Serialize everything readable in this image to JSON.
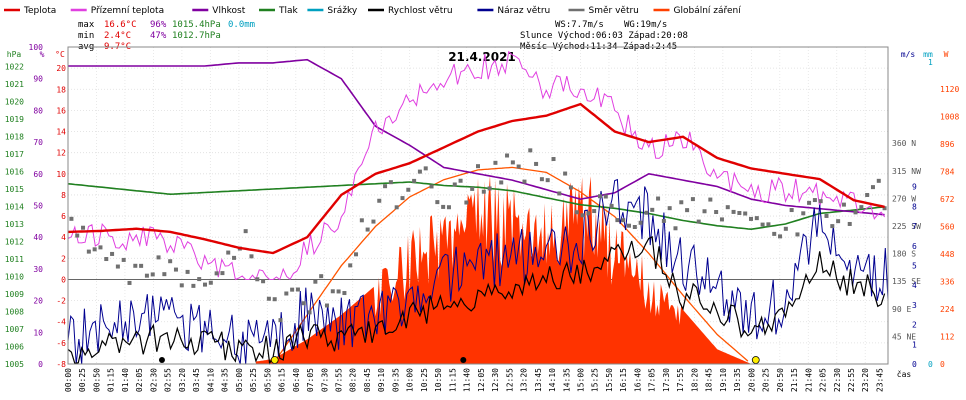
{
  "chart_data": {
    "type": "line",
    "title": "21.4.2021",
    "legend": [
      {
        "name": "Teplota",
        "color": "#e00000"
      },
      {
        "name": "Přízemní teplota",
        "color": "#e040e0"
      },
      {
        "name": "Vlhkost",
        "color": "#8000a0"
      },
      {
        "name": "Tlak",
        "color": "#208020"
      },
      {
        "name": "Srážky",
        "color": "#00a0c0"
      },
      {
        "name": "Rychlost větru",
        "color": "#000000"
      },
      {
        "name": "Náraz větru",
        "color": "#000090"
      },
      {
        "name": "Směr větru",
        "color": "#707070"
      },
      {
        "name": "Globální záření",
        "color": "#ff4000"
      }
    ],
    "stats": {
      "max": {
        "label": "max",
        "temp": "16.6°C",
        "hum": "96%",
        "press": "1015.4hPa",
        "rain": "0.0mm"
      },
      "min": {
        "label": "min",
        "temp": "2.4°C",
        "hum": "47%",
        "press": "1012.7hPa"
      },
      "avg": {
        "label": "avg",
        "temp": "9.7°C"
      }
    },
    "info": {
      "ws": "WS:7.7m/s",
      "wg": "WG:19m/s",
      "sun": "Slunce Východ:06:03  Západ:20:08",
      "moon": "Měsíc  Východ:11:34  Západ:2:45"
    },
    "axes": {
      "hpa_unit": "hPa",
      "pct_unit": "%",
      "c_unit": "°C",
      "ms_unit": "m/s",
      "mm_unit": "mm",
      "w_unit": "W",
      "hpa_ticks": [
        "1005",
        "1006",
        "1007",
        "1008",
        "1009",
        "1010",
        "1011",
        "1012",
        "1013",
        "1014",
        "1015",
        "1016",
        "1017",
        "1018",
        "1019",
        "1020",
        "1021",
        "1022"
      ],
      "pct_ticks": [
        "0",
        "10",
        "20",
        "30",
        "40",
        "50",
        "60",
        "70",
        "80",
        "90",
        "100"
      ],
      "c_ticks": [
        "-8",
        "-6",
        "-4",
        "-2",
        "0",
        "2",
        "4",
        "6",
        "8",
        "10",
        "12",
        "14",
        "16",
        "18",
        "20"
      ],
      "dir_ticks": [
        "45 NE",
        "90 E",
        "135 SE",
        "180 S",
        "225 SW",
        "270 W",
        "315 NW",
        "360 N"
      ],
      "ms_ticks": [
        "0",
        "1",
        "2",
        "3",
        "4",
        "5",
        "6",
        "7",
        "8",
        "9"
      ],
      "mm_ticks": [
        "0",
        "1"
      ],
      "w_ticks": [
        "0",
        "112",
        "224",
        "336",
        "448",
        "560",
        "672",
        "784",
        "896",
        "1008",
        "1120"
      ],
      "x_unit": "čas",
      "x_ticks": [
        "00:00",
        "00:25",
        "00:50",
        "01:15",
        "01:40",
        "02:05",
        "02:30",
        "02:55",
        "03:20",
        "03:45",
        "04:10",
        "04:35",
        "05:00",
        "05:25",
        "05:50",
        "06:15",
        "06:40",
        "07:05",
        "07:30",
        "07:55",
        "08:20",
        "08:45",
        "09:10",
        "09:35",
        "10:00",
        "10:25",
        "10:50",
        "11:15",
        "11:40",
        "12:05",
        "12:30",
        "12:55",
        "13:20",
        "13:45",
        "14:10",
        "14:35",
        "15:00",
        "15:25",
        "15:50",
        "16:15",
        "16:40",
        "17:05",
        "17:30",
        "17:55",
        "18:20",
        "18:45",
        "19:10",
        "19:35",
        "20:00",
        "20:25",
        "20:50",
        "21:15",
        "21:40",
        "22:05",
        "22:30",
        "22:55",
        "23:20",
        "23:45"
      ]
    },
    "temperature_c": {
      "x_hours": [
        0,
        1,
        2,
        3,
        4,
        5,
        6,
        7,
        8,
        9,
        10,
        11,
        12,
        13,
        14,
        15,
        16,
        17,
        18,
        19,
        20,
        21,
        22,
        23,
        24
      ],
      "values": [
        4.5,
        4.6,
        4.8,
        4.5,
        3.8,
        3.0,
        2.5,
        4.0,
        8.0,
        10.0,
        11.0,
        12.5,
        14.0,
        15.0,
        15.5,
        16.6,
        14.0,
        13.0,
        13.5,
        11.5,
        10.5,
        10.0,
        9.5,
        7.5,
        6.8
      ]
    },
    "ground_temp_c": {
      "x_hours": [
        0,
        1,
        2,
        3,
        4,
        5,
        6,
        7,
        8,
        9,
        10,
        11,
        12,
        13,
        14,
        15,
        16,
        17,
        18,
        19,
        20,
        21,
        22,
        23,
        24
      ],
      "values": [
        4.0,
        4.0,
        4.0,
        3.5,
        2.0,
        0,
        -0.5,
        3.0,
        6.0,
        14.0,
        17.0,
        19.0,
        20.0,
        20.5,
        18.0,
        18.5,
        16.0,
        12.0,
        13.5,
        10.0,
        8.0,
        8.5,
        8.0,
        7.0,
        6.0
      ]
    },
    "humidity_pct": {
      "x_hours": [
        0,
        1,
        2,
        3,
        4,
        5,
        6,
        7,
        8,
        9,
        10,
        11,
        12,
        13,
        14,
        15,
        16,
        17,
        18,
        19,
        20,
        21,
        22,
        23,
        24
      ],
      "values": [
        94,
        94,
        94,
        94,
        94,
        95,
        95,
        96,
        90,
        75,
        69,
        62,
        60,
        58,
        55,
        52,
        54,
        60,
        58,
        56,
        52,
        50,
        49,
        48,
        47
      ]
    },
    "pressure_hpa": {
      "x_hours": [
        0,
        1,
        2,
        3,
        4,
        5,
        6,
        7,
        8,
        9,
        10,
        11,
        12,
        13,
        14,
        15,
        16,
        17,
        18,
        19,
        20,
        21,
        22,
        23,
        24
      ],
      "values": [
        1015.3,
        1015.1,
        1014.9,
        1014.7,
        1014.8,
        1014.9,
        1015.0,
        1015.1,
        1015.2,
        1015.3,
        1015.4,
        1015.2,
        1015.1,
        1014.9,
        1014.5,
        1014.1,
        1013.9,
        1013.6,
        1013.2,
        1012.9,
        1012.7,
        1013.0,
        1013.6,
        1013.8,
        1014.0
      ]
    },
    "wind_speed_ms": {
      "x_hours": [
        0,
        1,
        2,
        3,
        4,
        5,
        6,
        7,
        8,
        9,
        10,
        11,
        12,
        13,
        14,
        15,
        16,
        17,
        18,
        19,
        20,
        21,
        22,
        23,
        24
      ],
      "values": [
        0.5,
        1.0,
        1.2,
        1.3,
        1.0,
        0.8,
        0.7,
        1.5,
        1.3,
        1.5,
        2.5,
        3.0,
        3.5,
        4.0,
        4.3,
        4.5,
        5.5,
        6.0,
        3.5,
        3.0,
        1.5,
        2.5,
        5.0,
        4.0,
        3.5
      ]
    },
    "wind_gust_ms": {
      "x_hours": [
        0,
        1,
        2,
        3,
        4,
        5,
        6,
        7,
        8,
        9,
        10,
        11,
        12,
        13,
        14,
        15,
        16,
        17,
        18,
        19,
        20,
        21,
        22,
        23,
        24
      ],
      "values": [
        1.0,
        1.8,
        2.5,
        2.0,
        1.5,
        1.0,
        1.2,
        2.5,
        2.2,
        2.5,
        3.5,
        4.5,
        5.0,
        5.5,
        5.5,
        6.0,
        8.5,
        7.5,
        5.0,
        4.0,
        2.5,
        3.0,
        7.5,
        5.0,
        4.5
      ]
    },
    "wind_dir_deg": {
      "x_hours": [
        0,
        1,
        2,
        3,
        4,
        5,
        6,
        7,
        8,
        9,
        10,
        11,
        12,
        13,
        14,
        15,
        16,
        17,
        18,
        19,
        20,
        21,
        22,
        23,
        24
      ],
      "values": [
        250,
        165,
        155,
        140,
        125,
        215,
        85,
        110,
        130,
        260,
        300,
        280,
        300,
        320,
        330,
        250,
        260,
        245,
        240,
        255,
        230,
        235,
        250,
        255,
        280
      ]
    },
    "global_radiation_w": {
      "x_hours": [
        5,
        6,
        7,
        8,
        9,
        10,
        11,
        12,
        13,
        14,
        15,
        16,
        17,
        18,
        19,
        20,
        24
      ],
      "values": [
        0,
        20,
        100,
        200,
        320,
        500,
        620,
        700,
        720,
        600,
        780,
        550,
        380,
        220,
        60,
        0,
        0
      ]
    },
    "clear_sky_radiation_w": {
      "x_hours": [
        6,
        7,
        8,
        9,
        10,
        11,
        12,
        13,
        14,
        15,
        16,
        17,
        18,
        19,
        20
      ],
      "values": [
        0,
        200,
        400,
        560,
        680,
        750,
        790,
        800,
        780,
        700,
        600,
        450,
        280,
        120,
        0
      ]
    }
  }
}
